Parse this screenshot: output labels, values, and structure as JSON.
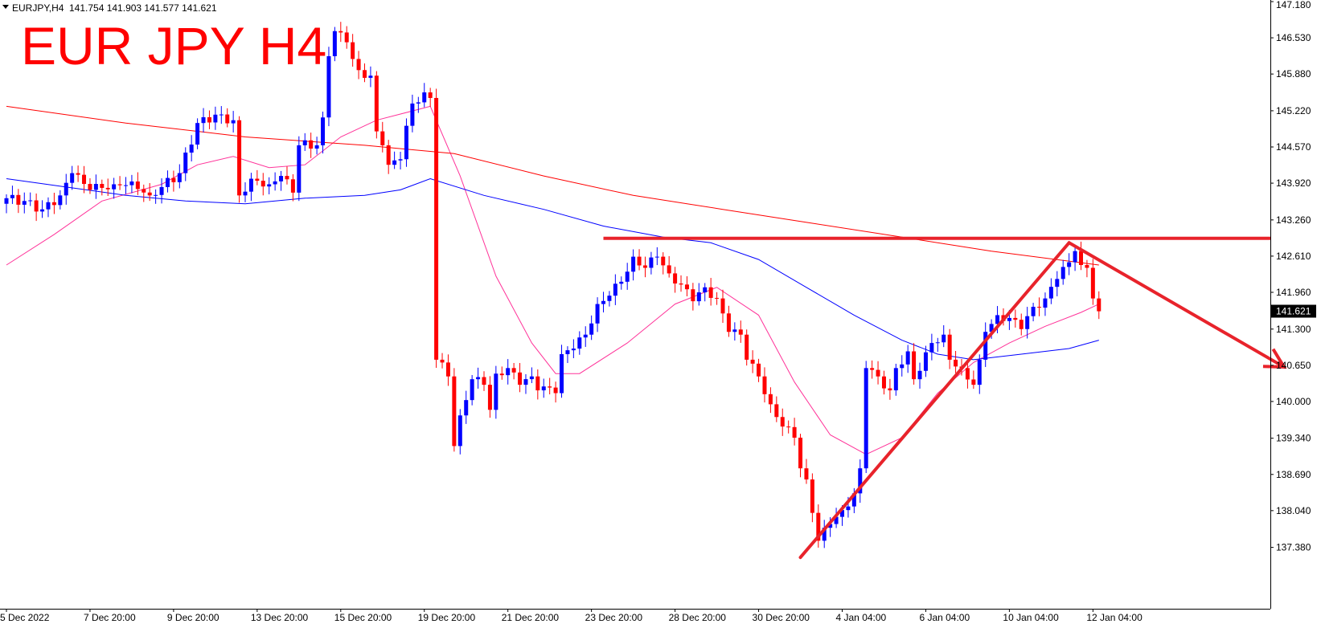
{
  "header": {
    "symbol": "EURJPY,H4",
    "ohlc": "141.754 141.903 141.577 141.621"
  },
  "overlay_title": "EUR JPY H4",
  "colors": {
    "bull": "#0000ff",
    "bear": "#ff0000",
    "ma_fast": "#ff3399",
    "ma_mid": "#0000ff",
    "ma_slow": "#ff0000",
    "drawing": "#e8232b"
  },
  "chart_data": {
    "type": "candlestick",
    "title": "EUR JPY H4",
    "ylim": [
      137.05,
      147.18
    ],
    "y_ticks": [
      147.18,
      146.53,
      145.88,
      145.22,
      144.57,
      143.92,
      143.26,
      142.61,
      141.96,
      141.3,
      140.65,
      140.0,
      139.34,
      138.69,
      138.04,
      137.38
    ],
    "y_tick_labels": [
      "147.180",
      "146.530",
      "145.880",
      "145.220",
      "144.570",
      "143.920",
      "143.260",
      "142.610",
      "141.960",
      "141.300",
      "140.650",
      "140.000",
      "139.340",
      "138.690",
      "138.040",
      "137.380"
    ],
    "x_tick_labels": [
      "5 Dec 2022",
      "7 Dec 20:00",
      "9 Dec 20:00",
      "13 Dec 20:00",
      "15 Dec 20:00",
      "19 Dec 20:00",
      "21 Dec 20:00",
      "23 Dec 20:00",
      "28 Dec 20:00",
      "30 Dec 20:00",
      "4 Jan 04:00",
      "6 Jan 04:00",
      "10 Jan 04:00",
      "12 Jan 04:00"
    ],
    "x_tick_index": [
      0,
      14,
      28,
      42,
      56,
      70,
      84,
      98,
      112,
      126,
      140,
      154,
      168,
      182
    ],
    "current_price": 141.621,
    "current_price_label": "141.621",
    "anchors": [
      [
        0,
        143.65
      ],
      [
        3,
        143.6
      ],
      [
        6,
        143.45
      ],
      [
        9,
        143.7
      ],
      [
        11,
        144.1
      ],
      [
        14,
        143.8
      ],
      [
        18,
        143.9
      ],
      [
        21,
        143.95
      ],
      [
        24,
        143.7
      ],
      [
        26,
        143.85
      ],
      [
        29,
        144.1
      ],
      [
        32,
        145.0
      ],
      [
        35,
        145.15
      ],
      [
        38,
        145.05
      ],
      [
        39,
        143.7
      ],
      [
        41,
        144.0
      ],
      [
        44,
        143.9
      ],
      [
        46,
        144.05
      ],
      [
        48,
        143.75
      ],
      [
        49,
        144.6
      ],
      [
        52,
        144.6
      ],
      [
        53,
        145.1
      ],
      [
        54,
        146.2
      ],
      [
        55,
        146.65
      ],
      [
        57,
        146.45
      ],
      [
        58,
        146.15
      ],
      [
        59,
        145.95
      ],
      [
        61,
        145.85
      ],
      [
        62,
        144.85
      ],
      [
        63,
        144.6
      ],
      [
        64,
        144.25
      ],
      [
        66,
        144.35
      ],
      [
        67,
        144.95
      ],
      [
        68,
        145.35
      ],
      [
        70,
        145.55
      ],
      [
        71,
        145.45
      ],
      [
        72,
        140.75
      ],
      [
        73,
        140.7
      ],
      [
        74,
        140.45
      ],
      [
        75,
        139.2
      ],
      [
        76,
        139.75
      ],
      [
        78,
        140.4
      ],
      [
        80,
        140.3
      ],
      [
        81,
        139.85
      ],
      [
        82,
        140.5
      ],
      [
        84,
        140.6
      ],
      [
        86,
        140.3
      ],
      [
        88,
        140.45
      ],
      [
        89,
        140.2
      ],
      [
        91,
        140.25
      ],
      [
        92,
        140.15
      ],
      [
        93,
        140.85
      ],
      [
        95,
        140.95
      ],
      [
        97,
        141.2
      ],
      [
        99,
        141.75
      ],
      [
        101,
        141.9
      ],
      [
        103,
        142.15
      ],
      [
        105,
        142.6
      ],
      [
        107,
        142.4
      ],
      [
        109,
        142.6
      ],
      [
        111,
        142.3
      ],
      [
        113,
        142.1
      ],
      [
        115,
        141.8
      ],
      [
        117,
        142.05
      ],
      [
        119,
        141.85
      ],
      [
        121,
        141.25
      ],
      [
        123,
        141.2
      ],
      [
        124,
        140.75
      ],
      [
        126,
        140.45
      ],
      [
        128,
        139.95
      ],
      [
        130,
        139.55
      ],
      [
        132,
        139.35
      ],
      [
        133,
        138.8
      ],
      [
        134,
        138.6
      ],
      [
        135,
        138.0
      ],
      [
        136,
        137.5
      ],
      [
        138,
        137.8
      ],
      [
        140,
        138.05
      ],
      [
        142,
        138.35
      ],
      [
        143,
        138.8
      ],
      [
        144,
        140.6
      ],
      [
        146,
        140.45
      ],
      [
        148,
        140.2
      ],
      [
        149,
        140.6
      ],
      [
        151,
        140.9
      ],
      [
        152,
        140.4
      ],
      [
        153,
        140.55
      ],
      [
        155,
        141.05
      ],
      [
        157,
        141.2
      ],
      [
        158,
        140.75
      ],
      [
        160,
        140.6
      ],
      [
        162,
        140.3
      ],
      [
        163,
        140.75
      ],
      [
        164,
        141.25
      ],
      [
        166,
        141.55
      ],
      [
        168,
        141.5
      ],
      [
        170,
        141.3
      ],
      [
        172,
        141.7
      ],
      [
        174,
        141.85
      ],
      [
        176,
        142.2
      ],
      [
        178,
        142.5
      ],
      [
        179,
        142.7
      ],
      [
        180,
        142.45
      ],
      [
        181,
        142.4
      ],
      [
        182,
        141.85
      ],
      [
        183,
        141.62
      ]
    ],
    "moving_averages": [
      {
        "color": "#ff3399",
        "points": [
          [
            0,
            142.45
          ],
          [
            8,
            143.0
          ],
          [
            16,
            143.6
          ],
          [
            26,
            143.9
          ],
          [
            32,
            144.25
          ],
          [
            38,
            144.4
          ],
          [
            44,
            144.2
          ],
          [
            50,
            144.25
          ],
          [
            56,
            144.75
          ],
          [
            62,
            145.05
          ],
          [
            71,
            145.3
          ],
          [
            76,
            144.05
          ],
          [
            82,
            142.25
          ],
          [
            88,
            141.05
          ],
          [
            92,
            140.5
          ],
          [
            96,
            140.5
          ],
          [
            104,
            141.05
          ],
          [
            112,
            141.75
          ],
          [
            119,
            142.05
          ],
          [
            126,
            141.55
          ],
          [
            132,
            140.35
          ],
          [
            138,
            139.4
          ],
          [
            144,
            139.05
          ],
          [
            150,
            139.35
          ],
          [
            156,
            140.15
          ],
          [
            162,
            140.7
          ],
          [
            168,
            141.05
          ],
          [
            174,
            141.35
          ],
          [
            180,
            141.6
          ],
          [
            183,
            141.75
          ]
        ]
      },
      {
        "color": "#0000ff",
        "points": [
          [
            0,
            144.0
          ],
          [
            10,
            143.85
          ],
          [
            20,
            143.7
          ],
          [
            30,
            143.6
          ],
          [
            40,
            143.55
          ],
          [
            50,
            143.65
          ],
          [
            60,
            143.7
          ],
          [
            66,
            143.8
          ],
          [
            71,
            144.0
          ],
          [
            80,
            143.7
          ],
          [
            90,
            143.45
          ],
          [
            100,
            143.15
          ],
          [
            110,
            142.95
          ],
          [
            118,
            142.85
          ],
          [
            126,
            142.55
          ],
          [
            134,
            142.05
          ],
          [
            142,
            141.55
          ],
          [
            150,
            141.1
          ],
          [
            156,
            140.85
          ],
          [
            162,
            140.75
          ],
          [
            170,
            140.85
          ],
          [
            178,
            140.95
          ],
          [
            183,
            141.1
          ]
        ]
      },
      {
        "color": "#ff0000",
        "points": [
          [
            0,
            145.3
          ],
          [
            20,
            145.0
          ],
          [
            40,
            144.75
          ],
          [
            60,
            144.6
          ],
          [
            75,
            144.45
          ],
          [
            90,
            144.05
          ],
          [
            105,
            143.7
          ],
          [
            120,
            143.45
          ],
          [
            135,
            143.2
          ],
          [
            150,
            142.95
          ],
          [
            165,
            142.7
          ],
          [
            183,
            142.45
          ]
        ]
      }
    ],
    "drawings": {
      "resistance": {
        "from_index": 100,
        "to_index": 230,
        "price": 142.93
      },
      "trendline": [
        [
          133,
          137.2
        ],
        [
          178,
          142.85
        ]
      ],
      "arrow": [
        [
          178,
          142.85
        ],
        [
          214,
          140.62
        ]
      ]
    }
  }
}
